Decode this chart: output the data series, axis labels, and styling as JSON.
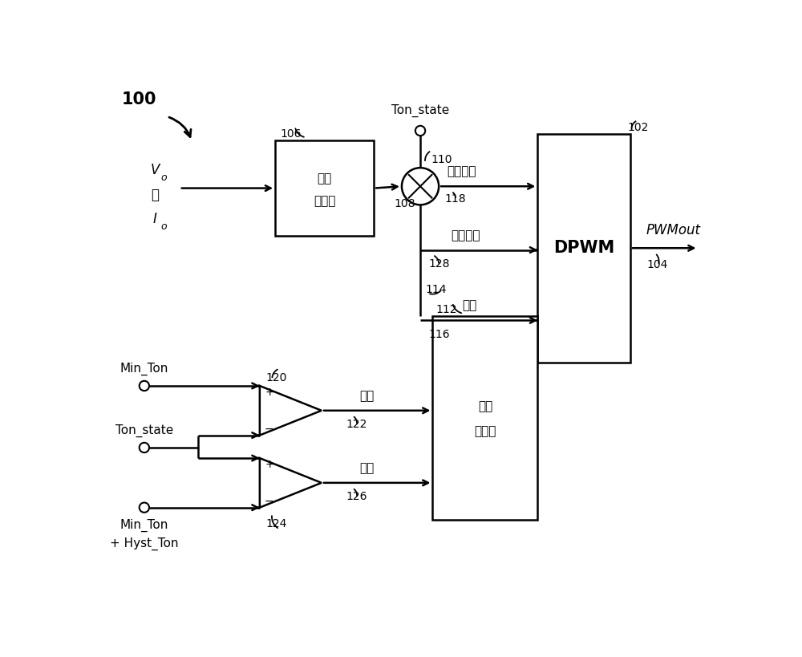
{
  "bg_color": "#ffffff",
  "label_100": "100",
  "label_102": "102",
  "label_104": "104",
  "label_106": "106",
  "label_108": "108",
  "label_110": "110",
  "label_112": "112",
  "label_114": "114",
  "label_116": "116",
  "label_118": "118",
  "label_120": "120",
  "label_122": "122",
  "label_124": "124",
  "label_126": "126",
  "label_128": "128",
  "mode_selector_line1": "模式",
  "mode_selector_line2": "选择器",
  "dpwm_text": "DPWM",
  "period_selector_line1": "周期",
  "period_selector_line2": "选择器",
  "ton_state_text": "Ton_state",
  "vo_text": "V",
  "vo_sub": "o",
  "or_text": "或",
  "io_text": "I",
  "io_sub": "o",
  "on_time_text": "接通时间",
  "reload_text": "重新加载",
  "period_text": "周期",
  "pwmout_text": "PWMout",
  "low_freq_text": "低频",
  "high_freq_text": "高频",
  "min_ton_text": "Min_Ton",
  "ton_state2_text": "Ton_state",
  "min_ton_hyst_line1": "Min_Ton",
  "min_ton_hyst_line2": "+ Hyst_Ton",
  "plus": "+",
  "minus": "−"
}
